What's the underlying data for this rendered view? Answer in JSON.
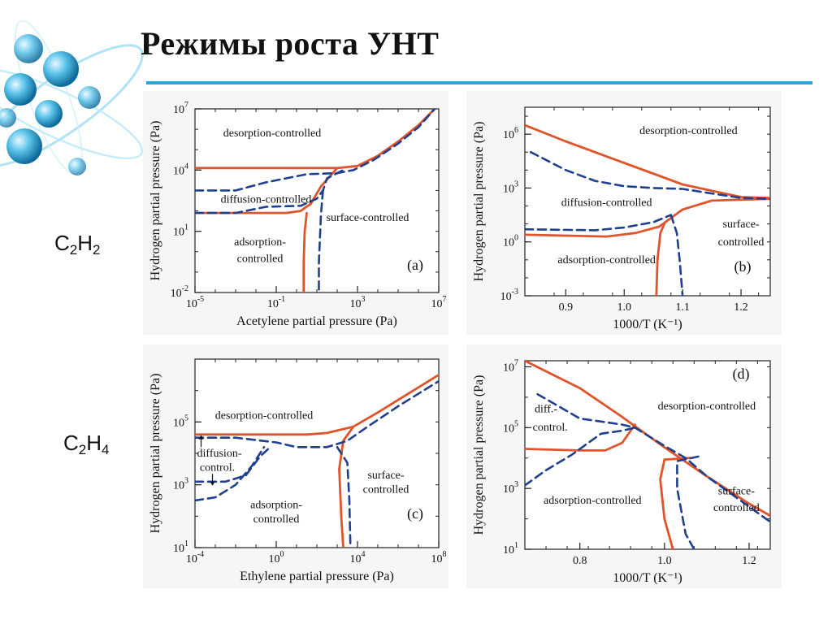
{
  "slide": {
    "title": "Режимы роста УНТ",
    "formulas": [
      {
        "base1": "C",
        "sub1": "2",
        "base2": "H",
        "sub2": "2"
      },
      {
        "base1": "C",
        "sub1": "2",
        "base2": "H",
        "sub2": "4"
      }
    ],
    "colors": {
      "accent_rule": "#2aa5dc",
      "solid_line": "#e0542c",
      "dashed_line": "#1f3f8f",
      "logo": "#5bc4ea"
    },
    "logo_icon": "molecule-orbit-icon"
  },
  "chart_data": [
    {
      "id": "a",
      "type": "line",
      "panel_label": "(a)",
      "xlabel": "Acetylene partial pressure (Pa)",
      "ylabel": "Hydrogen partial pressure (Pa)",
      "x_scale": "log",
      "y_scale": "log",
      "xlim": [
        -5,
        7
      ],
      "ylim": [
        -2,
        7
      ],
      "x_ticks": [
        {
          "v": -5,
          "base": "10",
          "exp": "-5"
        },
        {
          "v": -1,
          "base": "10",
          "exp": "-1"
        },
        {
          "v": 3,
          "base": "10",
          "exp": "3"
        },
        {
          "v": 7,
          "base": "10",
          "exp": "7"
        }
      ],
      "y_ticks": [
        {
          "v": -2,
          "base": "10",
          "exp": "-2"
        },
        {
          "v": 1,
          "base": "10",
          "exp": "1"
        },
        {
          "v": 4,
          "base": "10",
          "exp": "4"
        },
        {
          "v": 7,
          "base": "10",
          "exp": "7"
        }
      ],
      "regions": [
        {
          "text": "desorption-controlled",
          "x": -1.2,
          "y": 5.65
        },
        {
          "text": "diffusion-controlled",
          "x": -1.5,
          "y": 2.4
        },
        {
          "text": "surface-controlled",
          "x": 3.5,
          "y": 1.5
        },
        {
          "text": "adsorption-",
          "x": -1.8,
          "y": 0.3
        },
        {
          "text": "controlled",
          "x": -1.8,
          "y": -0.5
        }
      ],
      "series": [
        {
          "style": "solid",
          "points": [
            [
              -5,
              4.1
            ],
            [
              2.0,
              4.1
            ],
            [
              3.0,
              4.2
            ],
            [
              4.0,
              4.7
            ],
            [
              5.0,
              5.4
            ],
            [
              6.0,
              6.2
            ],
            [
              6.8,
              7.0
            ]
          ]
        },
        {
          "style": "solid",
          "points": [
            [
              -5,
              1.9
            ],
            [
              -0.5,
              1.9
            ],
            [
              0.2,
              2.0
            ],
            [
              0.7,
              2.35
            ],
            [
              1.2,
              3.2
            ],
            [
              2.0,
              4.1
            ]
          ]
        },
        {
          "style": "solid",
          "points": [
            [
              0.5,
              1.9
            ],
            [
              0.4,
              1.0
            ],
            [
              0.35,
              -0.5
            ],
            [
              0.35,
              -2.0
            ]
          ]
        },
        {
          "style": "dashed",
          "points": [
            [
              -5,
              3.0
            ],
            [
              -3.0,
              3.0
            ],
            [
              -1.5,
              3.4
            ],
            [
              0.5,
              3.8
            ],
            [
              2.0,
              3.85
            ],
            [
              2.8,
              4.0
            ],
            [
              3.8,
              4.5
            ],
            [
              5.0,
              5.3
            ],
            [
              6.0,
              6.1
            ],
            [
              6.8,
              7.0
            ]
          ]
        },
        {
          "style": "dashed",
          "points": [
            [
              -5,
              1.9
            ],
            [
              -3.0,
              1.9
            ],
            [
              -1.5,
              2.2
            ],
            [
              0.2,
              2.25
            ],
            [
              1.0,
              2.6
            ],
            [
              1.3,
              3.0
            ],
            [
              1.5,
              3.6
            ],
            [
              2.3,
              4.0
            ]
          ]
        },
        {
          "style": "dashed",
          "points": [
            [
              1.3,
              3.0
            ],
            [
              1.2,
              1.8
            ],
            [
              1.1,
              -0.5
            ],
            [
              1.1,
              -2.0
            ]
          ]
        }
      ]
    },
    {
      "id": "b",
      "type": "line",
      "panel_label": "(b)",
      "xlabel": "1000/T (K⁻¹)",
      "ylabel": "Hydrogen partial pressure (Pa)",
      "x_scale": "linear",
      "y_scale": "log",
      "xlim": [
        0.83,
        1.25
      ],
      "ylim": [
        -3,
        7.5
      ],
      "x_ticks": [
        {
          "v": 0.9,
          "base": "0.9",
          "exp": ""
        },
        {
          "v": 1.0,
          "base": "1.0",
          "exp": ""
        },
        {
          "v": 1.1,
          "base": "1.1",
          "exp": ""
        },
        {
          "v": 1.2,
          "base": "1.2",
          "exp": ""
        }
      ],
      "y_ticks": [
        {
          "v": -3,
          "base": "10",
          "exp": "-3"
        },
        {
          "v": 0,
          "base": "10",
          "exp": "0"
        },
        {
          "v": 3,
          "base": "10",
          "exp": "3"
        },
        {
          "v": 6,
          "base": "10",
          "exp": "6"
        }
      ],
      "regions": [
        {
          "text": "desorption-controlled",
          "x": 1.11,
          "y": 6.0
        },
        {
          "text": "diffusion-controlled",
          "x": 0.97,
          "y": 2.0
        },
        {
          "text": "surface-",
          "x": 1.2,
          "y": 0.8
        },
        {
          "text": "controlled",
          "x": 1.2,
          "y": -0.2
        },
        {
          "text": "adsorption-controlled",
          "x": 0.97,
          "y": -1.2
        }
      ],
      "series": [
        {
          "style": "solid",
          "points": [
            [
              0.83,
              6.5
            ],
            [
              0.9,
              5.6
            ],
            [
              1.0,
              4.4
            ],
            [
              1.1,
              3.2
            ],
            [
              1.2,
              2.5
            ],
            [
              1.25,
              2.45
            ]
          ]
        },
        {
          "style": "solid",
          "points": [
            [
              0.83,
              0.4
            ],
            [
              0.97,
              0.3
            ],
            [
              1.02,
              0.5
            ],
            [
              1.06,
              0.85
            ]
          ]
        },
        {
          "style": "solid",
          "points": [
            [
              1.06,
              0.85
            ],
            [
              1.1,
              1.8
            ],
            [
              1.15,
              2.3
            ],
            [
              1.25,
              2.4
            ]
          ]
        },
        {
          "style": "solid",
          "points": [
            [
              1.07,
              1.1
            ],
            [
              1.062,
              0.5
            ],
            [
              1.057,
              -1.0
            ],
            [
              1.055,
              -3.0
            ]
          ]
        },
        {
          "style": "dashed",
          "points": [
            [
              0.84,
              5.0
            ],
            [
              0.9,
              4.0
            ],
            [
              0.95,
              3.4
            ],
            [
              1.0,
              3.1
            ],
            [
              1.05,
              3.0
            ],
            [
              1.1,
              2.95
            ],
            [
              1.15,
              2.7
            ],
            [
              1.2,
              2.45
            ],
            [
              1.25,
              2.4
            ]
          ]
        },
        {
          "style": "dashed",
          "points": [
            [
              0.83,
              0.7
            ],
            [
              0.95,
              0.65
            ],
            [
              1.0,
              0.8
            ],
            [
              1.05,
              1.1
            ],
            [
              1.08,
              1.5
            ]
          ]
        },
        {
          "style": "dashed",
          "points": [
            [
              1.08,
              1.5
            ],
            [
              1.09,
              0.5
            ],
            [
              1.095,
              -1.0
            ],
            [
              1.1,
              -3.0
            ]
          ]
        }
      ]
    },
    {
      "id": "c",
      "type": "line",
      "panel_label": "(c)",
      "xlabel": "Ethylene partial pressure (Pa)",
      "ylabel": "Hydrogen partial pressure (Pa)",
      "x_scale": "log",
      "y_scale": "log",
      "xlim": [
        -4,
        8
      ],
      "ylim": [
        1,
        7
      ],
      "x_ticks": [
        {
          "v": -4,
          "base": "10",
          "exp": "-4"
        },
        {
          "v": 0,
          "base": "10",
          "exp": "0"
        },
        {
          "v": 4,
          "base": "10",
          "exp": "4"
        },
        {
          "v": 8,
          "base": "10",
          "exp": "8"
        }
      ],
      "y_ticks": [
        {
          "v": 1,
          "base": "10",
          "exp": "1"
        },
        {
          "v": 3,
          "base": "10",
          "exp": "3"
        },
        {
          "v": 5,
          "base": "10",
          "exp": "5"
        }
      ],
      "regions": [
        {
          "text": "desorption-controlled",
          "x": -0.6,
          "y": 5.1
        },
        {
          "text": "diffusion-",
          "x": -2.8,
          "y": 3.9
        },
        {
          "text": "control.",
          "x": -2.9,
          "y": 3.45
        },
        {
          "text": "surface-",
          "x": 5.4,
          "y": 3.2
        },
        {
          "text": "controlled",
          "x": 5.4,
          "y": 2.75
        },
        {
          "text": "adsorption-",
          "x": 0.0,
          "y": 2.25
        },
        {
          "text": "controlled",
          "x": 0.0,
          "y": 1.8
        }
      ],
      "series": [
        {
          "style": "solid",
          "points": [
            [
              -4,
              4.6
            ],
            [
              1.5,
              4.6
            ],
            [
              2.5,
              4.65
            ],
            [
              3.8,
              4.85
            ],
            [
              5.0,
              5.3
            ],
            [
              6.5,
              5.9
            ],
            [
              8,
              6.5
            ]
          ]
        },
        {
          "style": "solid",
          "points": [
            [
              3.8,
              4.85
            ],
            [
              3.3,
              4.4
            ],
            [
              3.1,
              3.5
            ],
            [
              3.2,
              2.0
            ],
            [
              3.3,
              1.0
            ]
          ]
        },
        {
          "style": "dashed",
          "points": [
            [
              -4,
              4.5
            ],
            [
              -2.0,
              4.5
            ],
            [
              0.0,
              4.35
            ],
            [
              1.0,
              4.2
            ],
            [
              2.5,
              4.2
            ],
            [
              3.5,
              4.4
            ],
            [
              4.5,
              4.85
            ],
            [
              6.0,
              5.5
            ],
            [
              8,
              6.3
            ]
          ]
        },
        {
          "style": "dashed",
          "points": [
            [
              -4,
              3.1
            ],
            [
              -2.5,
              3.1
            ],
            [
              -1.5,
              3.3
            ],
            [
              -0.8,
              3.9
            ],
            [
              -0.3,
              4.2
            ]
          ]
        },
        {
          "style": "dashed",
          "points": [
            [
              -4,
              2.5
            ],
            [
              -3.0,
              2.6
            ],
            [
              -2.0,
              3.0
            ],
            [
              -1.2,
              3.6
            ],
            [
              -0.6,
              4.2
            ]
          ]
        },
        {
          "style": "dashed",
          "points": [
            [
              3.0,
              4.2
            ],
            [
              3.5,
              3.7
            ],
            [
              3.6,
              2.5
            ],
            [
              3.65,
              1.0
            ]
          ]
        }
      ]
    },
    {
      "id": "d",
      "type": "line",
      "panel_label": "(d)",
      "xlabel": "1000/T (K⁻¹)",
      "ylabel": "Hydrogen partial pressure (Pa)",
      "x_scale": "linear",
      "y_scale": "log",
      "xlim": [
        0.67,
        1.25
      ],
      "ylim": [
        1,
        7.2
      ],
      "x_ticks": [
        {
          "v": 0.8,
          "base": "0.8",
          "exp": ""
        },
        {
          "v": 1.0,
          "base": "1.0",
          "exp": ""
        },
        {
          "v": 1.2,
          "base": "1.2",
          "exp": ""
        }
      ],
      "y_ticks": [
        {
          "v": 1,
          "base": "10",
          "exp": "1"
        },
        {
          "v": 3,
          "base": "10",
          "exp": "3"
        },
        {
          "v": 5,
          "base": "10",
          "exp": "5"
        },
        {
          "v": 7,
          "base": "10",
          "exp": "7"
        }
      ],
      "regions": [
        {
          "text": "desorption-controlled",
          "x": 1.1,
          "y": 5.6
        },
        {
          "text": "diff.-",
          "x": 0.72,
          "y": 5.5
        },
        {
          "text": "control.",
          "x": 0.73,
          "y": 4.9
        },
        {
          "text": "adsorption-controlled",
          "x": 0.83,
          "y": 2.5
        },
        {
          "text": "surface-",
          "x": 1.17,
          "y": 2.8
        },
        {
          "text": "controlled",
          "x": 1.17,
          "y": 2.25
        }
      ],
      "series": [
        {
          "style": "solid",
          "points": [
            [
              0.67,
              7.2
            ],
            [
              0.8,
              6.3
            ],
            [
              0.9,
              5.35
            ],
            [
              1.0,
              4.35
            ],
            [
              1.1,
              3.4
            ],
            [
              1.2,
              2.5
            ],
            [
              1.25,
              2.1
            ]
          ]
        },
        {
          "style": "solid",
          "points": [
            [
              0.67,
              4.3
            ],
            [
              0.8,
              4.25
            ],
            [
              0.86,
              4.25
            ],
            [
              0.9,
              4.5
            ],
            [
              0.93,
              5.1
            ]
          ]
        },
        {
          "style": "solid",
          "points": [
            [
              1.06,
              4.0
            ],
            [
              1.0,
              3.95
            ],
            [
              0.99,
              3.3
            ],
            [
              1.0,
              2.0
            ],
            [
              1.02,
              1.0
            ]
          ]
        },
        {
          "style": "dashed",
          "points": [
            [
              0.7,
              6.1
            ],
            [
              0.75,
              5.7
            ],
            [
              0.8,
              5.3
            ],
            [
              0.85,
              5.2
            ],
            [
              0.9,
              5.1
            ],
            [
              0.93,
              5.0
            ],
            [
              1.0,
              4.4
            ],
            [
              1.05,
              4.0
            ],
            [
              1.1,
              3.4
            ],
            [
              1.2,
              2.4
            ],
            [
              1.25,
              1.9
            ]
          ]
        },
        {
          "style": "dashed",
          "points": [
            [
              0.67,
              3.1
            ],
            [
              0.72,
              3.6
            ],
            [
              0.78,
              4.1
            ],
            [
              0.85,
              4.8
            ],
            [
              0.9,
              4.9
            ],
            [
              0.93,
              5.0
            ]
          ]
        },
        {
          "style": "dashed",
          "points": [
            [
              1.08,
              4.05
            ],
            [
              1.03,
              3.9
            ],
            [
              1.03,
              3.0
            ],
            [
              1.05,
              1.5
            ],
            [
              1.07,
              1.0
            ]
          ]
        }
      ]
    }
  ]
}
